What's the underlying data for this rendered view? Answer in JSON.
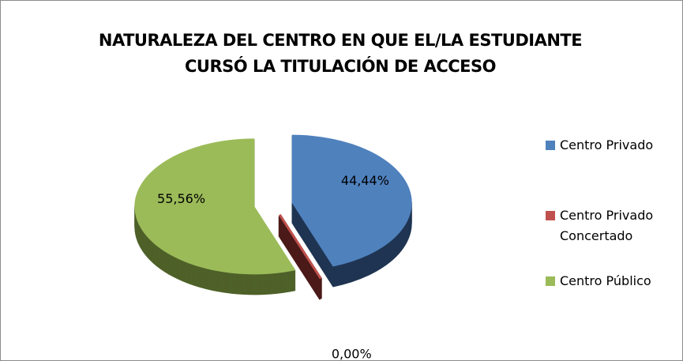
{
  "chart_data": {
    "type": "pie",
    "title": "NATURALEZA DEL CENTRO EN QUE EL/LA ESTUDIANTE CURSÓ LA TITULACIÓN DE ACCESO",
    "categories": [
      "Centro Privado",
      "Centro Privado Concertado",
      "Centro Público"
    ],
    "values": [
      44.44,
      0,
      55.56
    ],
    "value_labels": [
      "44,44%",
      "0,00%",
      "55,56%"
    ],
    "colors": [
      "#4f81bd",
      "#c0504d",
      "#9bbb59"
    ],
    "side_colors": [
      "#1f3552",
      "#4b1a19",
      "#4e6128"
    ],
    "legend": "right"
  }
}
